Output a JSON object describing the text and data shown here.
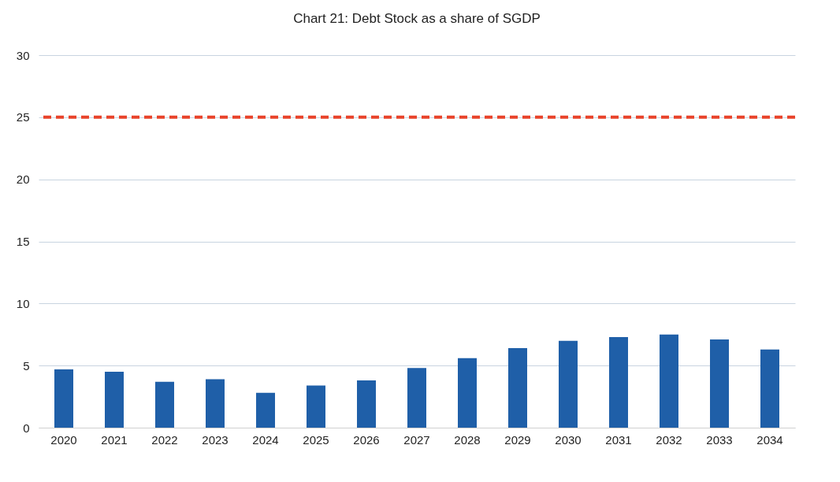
{
  "chart_data": {
    "type": "bar",
    "title": "Chart 21: Debt Stock as a share of SGDP",
    "categories": [
      "2020",
      "2021",
      "2022",
      "2023",
      "2024",
      "2025",
      "2026",
      "2027",
      "2028",
      "2029",
      "2030",
      "2031",
      "2032",
      "2033",
      "2034"
    ],
    "values": [
      4.7,
      4.5,
      3.7,
      3.9,
      2.8,
      3.4,
      3.8,
      4.8,
      5.6,
      6.4,
      7.0,
      7.3,
      7.5,
      7.1,
      6.3
    ],
    "color": "#1f5fa8",
    "ylim": [
      0,
      30
    ],
    "yticks": [
      0,
      5,
      10,
      15,
      20,
      25,
      30
    ],
    "grid": "y",
    "ref_lines": [
      {
        "axis": "y",
        "value": 25,
        "color": "#e8432a",
        "line_style": "dashed"
      }
    ]
  }
}
